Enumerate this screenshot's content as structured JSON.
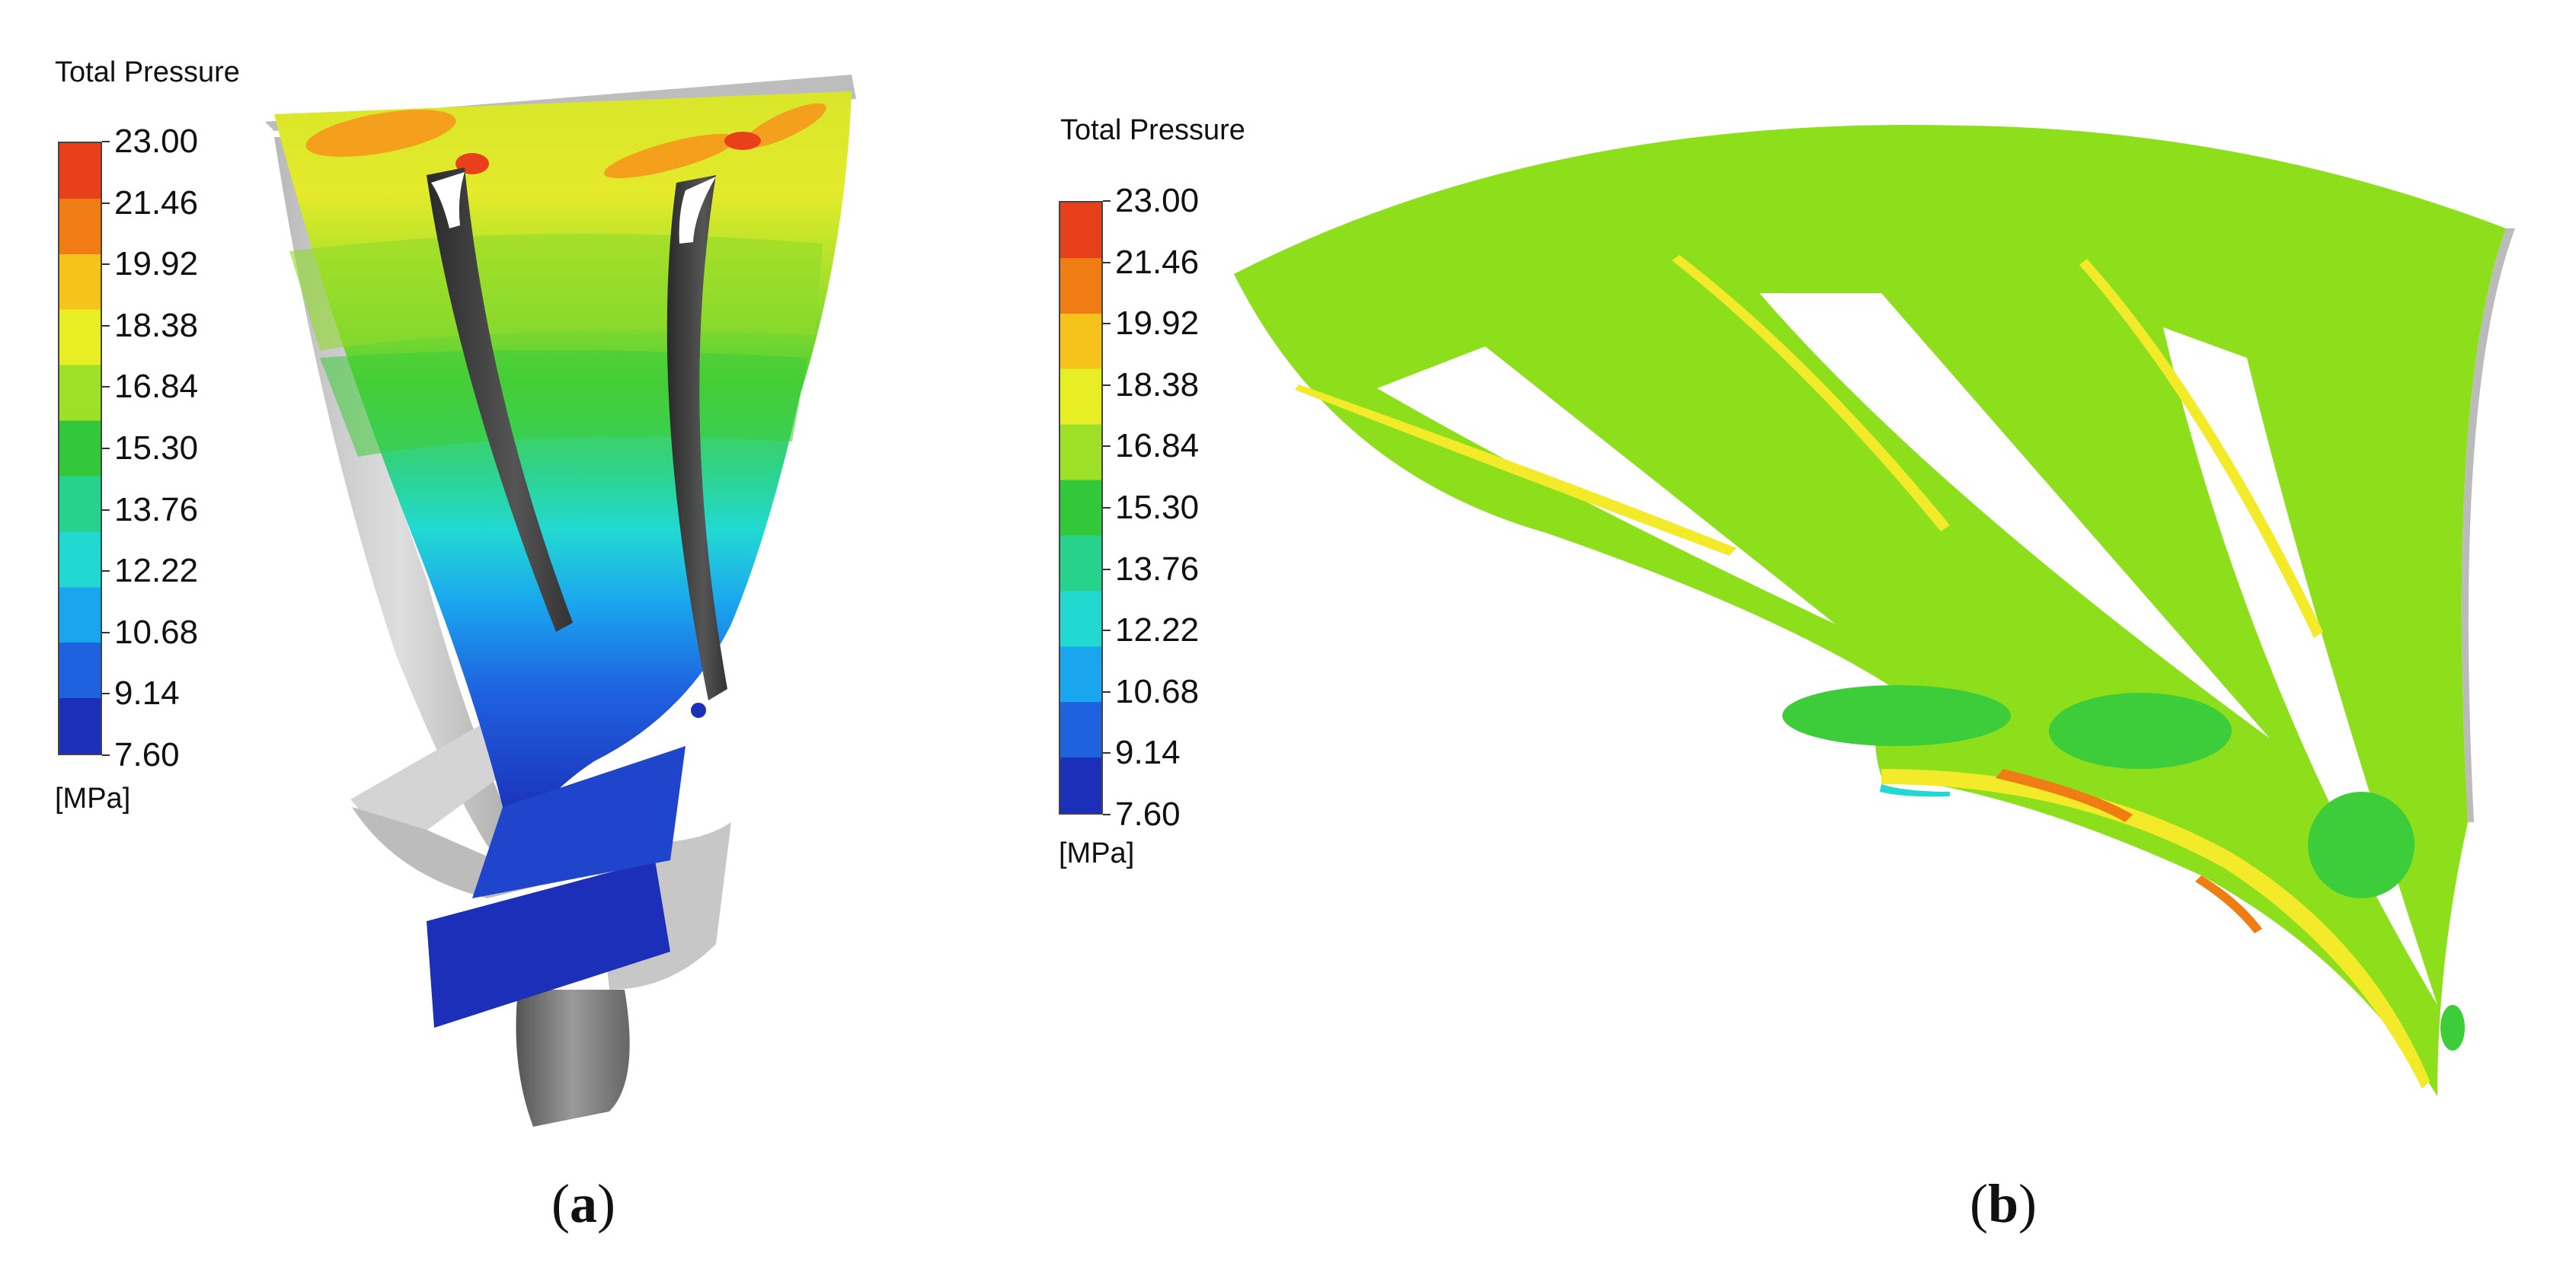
{
  "panels": [
    {
      "id": "a",
      "caption_open": "(",
      "caption_letter": "a",
      "caption_close": ")",
      "legend": {
        "title": "Total Pressure",
        "unit": "[MPa]",
        "ticks": [
          "23.00",
          "21.46",
          "19.92",
          "18.38",
          "16.84",
          "15.30",
          "13.76",
          "12.22",
          "10.68",
          "9.14",
          "7.60"
        ],
        "colors": [
          "#e8401a",
          "#f07c14",
          "#f5c31c",
          "#e7ef24",
          "#9ee028",
          "#33c83a",
          "#27d38c",
          "#22d9d2",
          "#1aa6ee",
          "#1f62e0",
          "#1b2fb8"
        ]
      }
    },
    {
      "id": "b",
      "caption_open": "(",
      "caption_letter": "b",
      "caption_close": ")",
      "legend": {
        "title": "Total Pressure",
        "unit": "[MPa]",
        "ticks": [
          "23.00",
          "21.46",
          "19.92",
          "18.38",
          "16.84",
          "15.30",
          "13.76",
          "12.22",
          "10.68",
          "9.14",
          "7.60"
        ],
        "colors": [
          "#e8401a",
          "#f07c14",
          "#f5c31c",
          "#e7ef24",
          "#9ee028",
          "#33c83a",
          "#27d38c",
          "#22d9d2",
          "#1aa6ee",
          "#1f62e0",
          "#1b2fb8"
        ]
      }
    }
  ]
}
